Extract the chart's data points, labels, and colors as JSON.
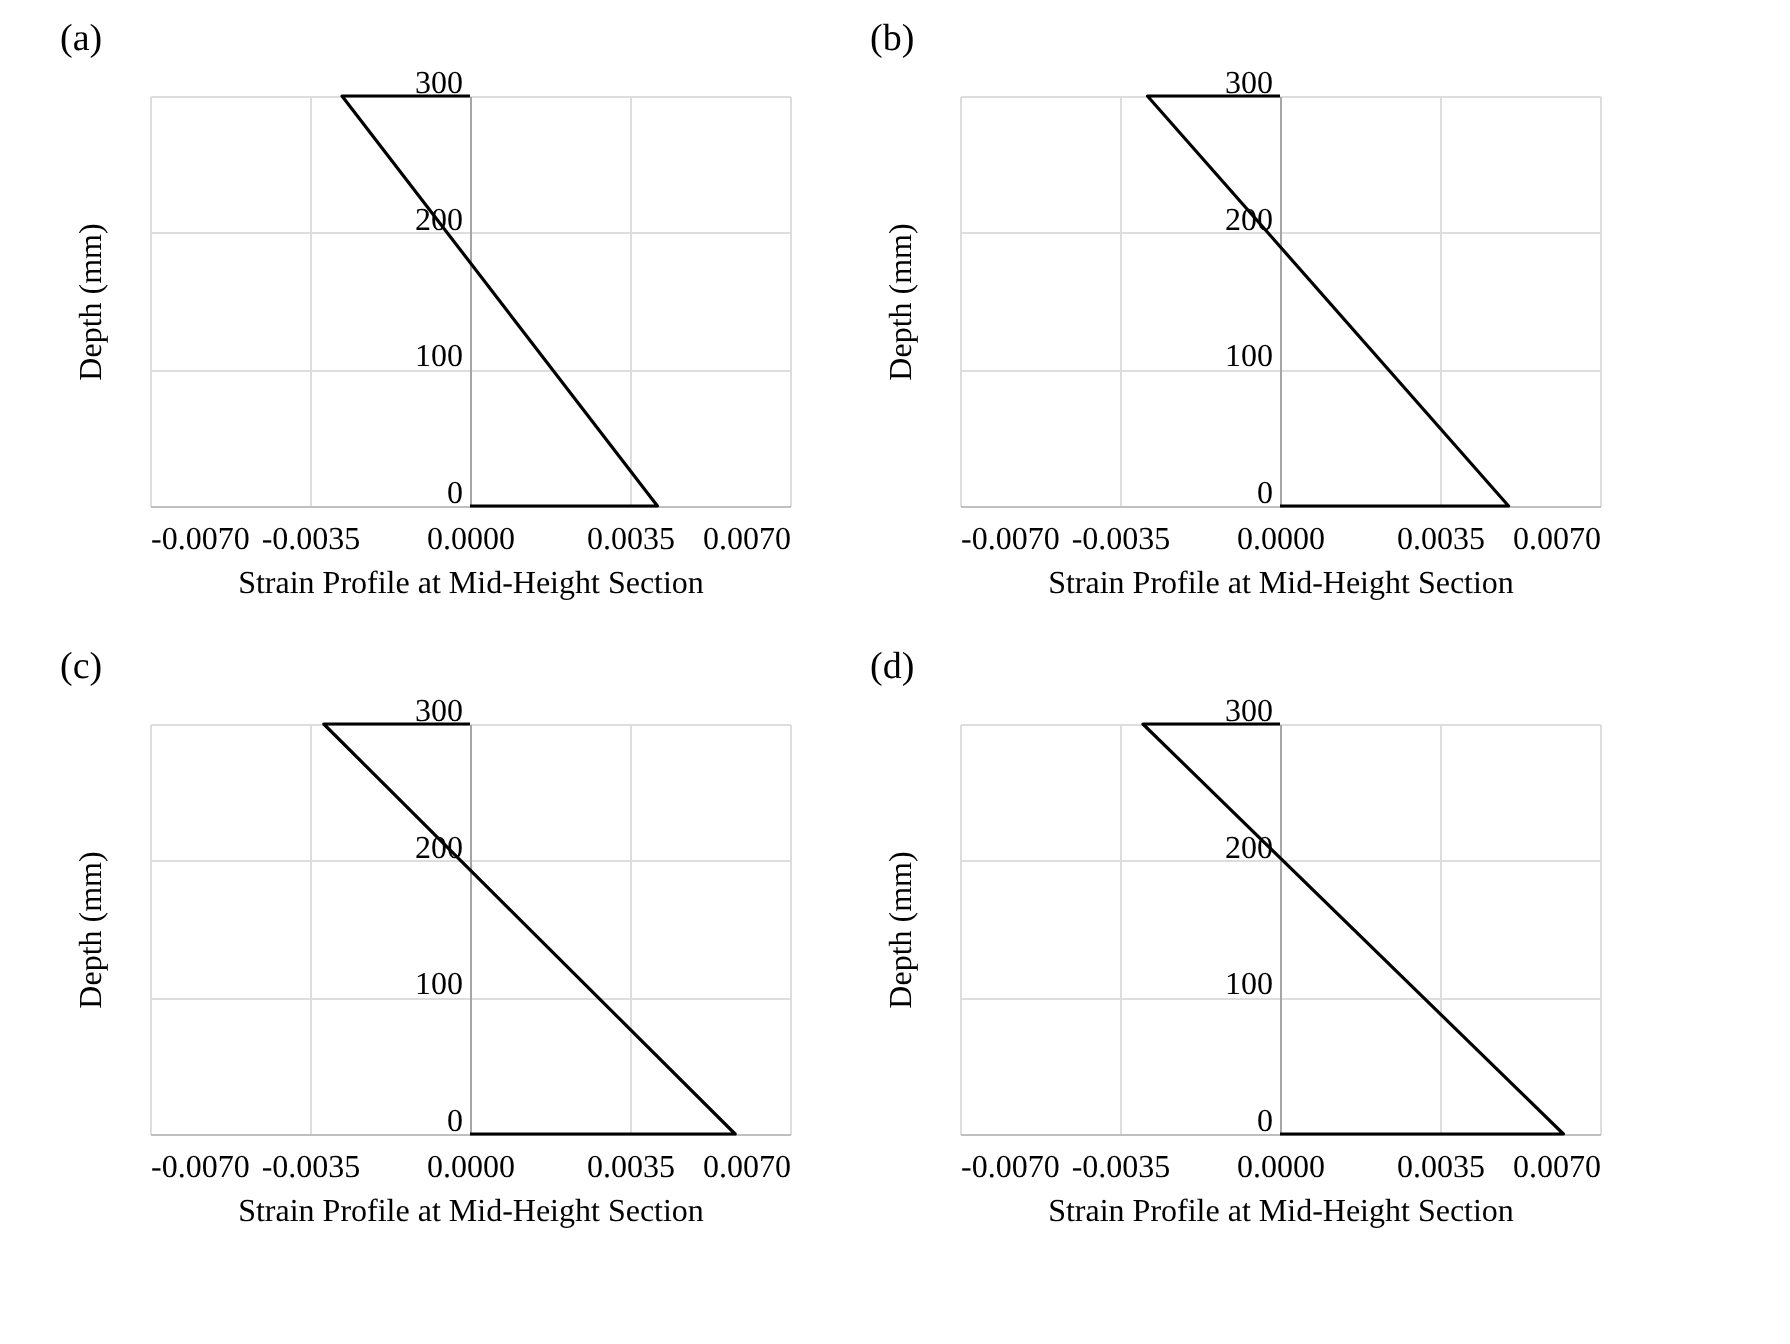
{
  "chart_data": [
    {
      "type": "line",
      "title": "(a)",
      "xlabel": "Strain Profile at Mid-Height Section",
      "ylabel": "Depth (mm)",
      "x": [
        0,
        -0.0028,
        0.0041,
        0
      ],
      "series": [
        {
          "color": "#000000",
          "values": [
            300,
            300,
            0,
            0
          ]
        }
      ],
      "xlim": [
        -0.007,
        0.007
      ],
      "xticks": [
        {
          "value": -0.007,
          "label": "-0.0070"
        },
        {
          "value": -0.0035,
          "label": "-0.0035"
        },
        {
          "value": 0,
          "label": "0.0000"
        },
        {
          "value": 0.0035,
          "label": "0.0035"
        },
        {
          "value": 0.007,
          "label": "0.0070"
        }
      ],
      "ylim": [
        0,
        300
      ],
      "yticks": [
        0,
        100,
        200,
        300
      ],
      "grid": true
    },
    {
      "type": "line",
      "title": "(b)",
      "xlabel": "Strain Profile at Mid-Height Section",
      "ylabel": "Depth (mm)",
      "x": [
        0,
        -0.0029,
        0.005,
        0
      ],
      "series": [
        {
          "color": "#000000",
          "values": [
            300,
            300,
            0,
            0
          ]
        }
      ],
      "xlim": [
        -0.007,
        0.007
      ],
      "xticks": [
        {
          "value": -0.007,
          "label": "-0.0070"
        },
        {
          "value": -0.0035,
          "label": "-0.0035"
        },
        {
          "value": 0,
          "label": "0.0000"
        },
        {
          "value": 0.0035,
          "label": "0.0035"
        },
        {
          "value": 0.007,
          "label": "0.0070"
        }
      ],
      "ylim": [
        0,
        300
      ],
      "yticks": [
        0,
        100,
        200,
        300
      ],
      "grid": true
    },
    {
      "type": "line",
      "title": "(c)",
      "xlabel": "Strain Profile at Mid-Height Section",
      "ylabel": "Depth (mm)",
      "x": [
        0,
        -0.0032,
        0.0058,
        0
      ],
      "series": [
        {
          "color": "#000000",
          "values": [
            300,
            300,
            0,
            0
          ]
        }
      ],
      "xlim": [
        -0.007,
        0.007
      ],
      "xticks": [
        {
          "value": -0.007,
          "label": "-0.0070"
        },
        {
          "value": -0.0035,
          "label": "-0.0035"
        },
        {
          "value": 0,
          "label": "0.0000"
        },
        {
          "value": 0.0035,
          "label": "0.0035"
        },
        {
          "value": 0.007,
          "label": "0.0070"
        }
      ],
      "ylim": [
        0,
        300
      ],
      "yticks": [
        0,
        100,
        200,
        300
      ],
      "grid": true
    },
    {
      "type": "line",
      "title": "(d)",
      "xlabel": "Strain Profile at Mid-Height Section",
      "ylabel": "Depth (mm)",
      "x": [
        0,
        -0.003,
        0.0062,
        0
      ],
      "series": [
        {
          "color": "#000000",
          "values": [
            300,
            300,
            0,
            0
          ]
        }
      ],
      "xlim": [
        -0.007,
        0.007
      ],
      "xticks": [
        {
          "value": -0.007,
          "label": "-0.0070"
        },
        {
          "value": -0.0035,
          "label": "-0.0035"
        },
        {
          "value": 0,
          "label": "0.0000"
        },
        {
          "value": 0.0035,
          "label": "0.0035"
        },
        {
          "value": 0.007,
          "label": "0.0070"
        }
      ],
      "ylim": [
        0,
        300
      ],
      "yticks": [
        0,
        100,
        200,
        300
      ],
      "grid": true
    }
  ]
}
